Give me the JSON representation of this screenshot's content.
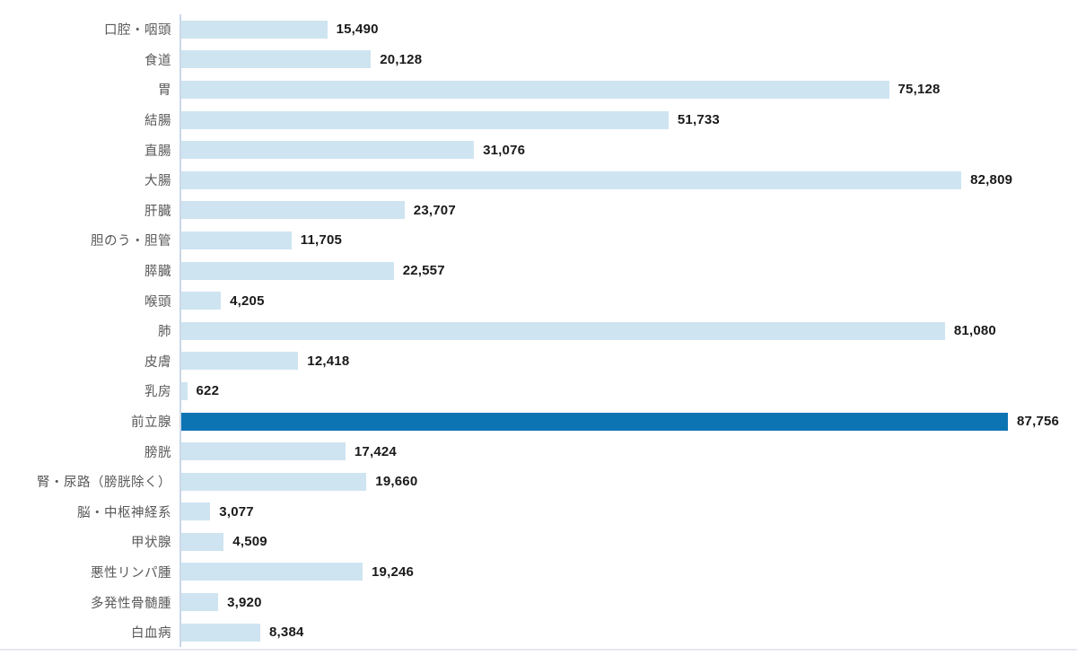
{
  "chart_data": {
    "type": "bar",
    "orientation": "horizontal",
    "title": "",
    "xlabel": "",
    "ylabel": "",
    "grid": false,
    "legend": false,
    "xlim": [
      0,
      87756
    ],
    "categories": [
      "口腔・咽頭",
      "食道",
      "胃",
      "結腸",
      "直腸",
      "大腸",
      "肝臓",
      "胆のう・胆管",
      "膵臓",
      "喉頭",
      "肺",
      "皮膚",
      "乳房",
      "前立腺",
      "膀胱",
      "腎・尿路（膀胱除く）",
      "脳・中枢神経系",
      "甲状腺",
      "悪性リンパ腫",
      "多発性骨髄腫",
      "白血病"
    ],
    "values": [
      15490,
      20128,
      75128,
      51733,
      31076,
      82809,
      23707,
      11705,
      22557,
      4205,
      81080,
      12418,
      622,
      87756,
      17424,
      19660,
      3077,
      4509,
      19246,
      3920,
      8384
    ],
    "value_labels": [
      "15,490",
      "20,128",
      "75,128",
      "51,733",
      "31,076",
      "82,809",
      "23,707",
      "11,705",
      "22,557",
      "4,205",
      "81,080",
      "12,418",
      "622",
      "87,756",
      "17,424",
      "19,660",
      "3,077",
      "4,509",
      "19,246",
      "3,920",
      "8,384"
    ],
    "highlighted_category": "前立腺",
    "colors": {
      "bar": "#cfe4f1",
      "bar_highlight": "#0d74b3",
      "axis_line": "#c9d7e8",
      "category_label": "#595959",
      "value_label": "#1a1a1a",
      "baseline": "#e7e7f0"
    }
  }
}
